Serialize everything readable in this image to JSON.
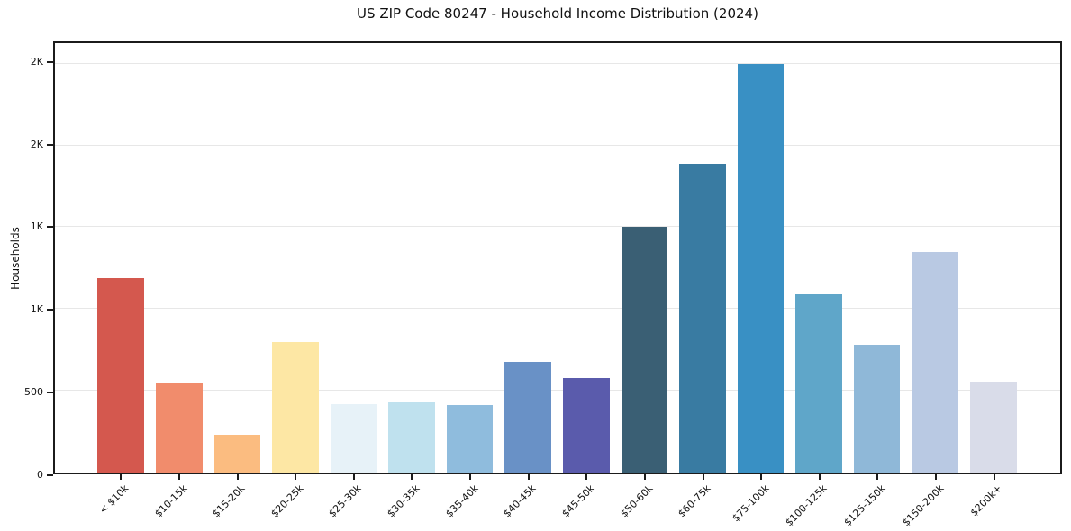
{
  "chart_data": {
    "type": "bar",
    "title": "US ZIP Code 80247 - Household Income Distribution (2024)",
    "xlabel": "",
    "ylabel": "Households",
    "categories": [
      "< $10k",
      "$10-15k",
      "$15-20k",
      "$20-25k",
      "$25-30k",
      "$30-35k",
      "$35-40k",
      "$40-45k",
      "$45-50k",
      "$50-60k",
      "$60-75k",
      "$75-100k",
      "$100-125k",
      "$125-150k",
      "$150-200k",
      "$200k+"
    ],
    "values": [
      1190,
      550,
      230,
      800,
      420,
      430,
      415,
      675,
      580,
      1500,
      1885,
      2500,
      1090,
      780,
      1350,
      555
    ],
    "bar_colors": [
      "#d4584e",
      "#f18c6c",
      "#fbbc80",
      "#fde7a4",
      "#e7f2f8",
      "#bfe1ee",
      "#8fbcdd",
      "#6991c6",
      "#5a5bac",
      "#3a5f74",
      "#397ba2",
      "#3990c4",
      "#5fa6c9",
      "#8fb8d8",
      "#b9c9e3",
      "#d9dce9"
    ],
    "ylim": [
      0,
      2625
    ],
    "yticks": [
      {
        "value": 0,
        "label": "0"
      },
      {
        "value": 500,
        "label": "500"
      },
      {
        "value": 1000,
        "label": "1K"
      },
      {
        "value": 1500,
        "label": "1K"
      },
      {
        "value": 2000,
        "label": "2K"
      },
      {
        "value": 2500,
        "label": "2K"
      }
    ],
    "grid": "horizontal",
    "gridline_color": "#e7e7e7",
    "spine_color": "#1b1b1b",
    "legend": "none",
    "x_tick_rotation_deg": 45
  }
}
